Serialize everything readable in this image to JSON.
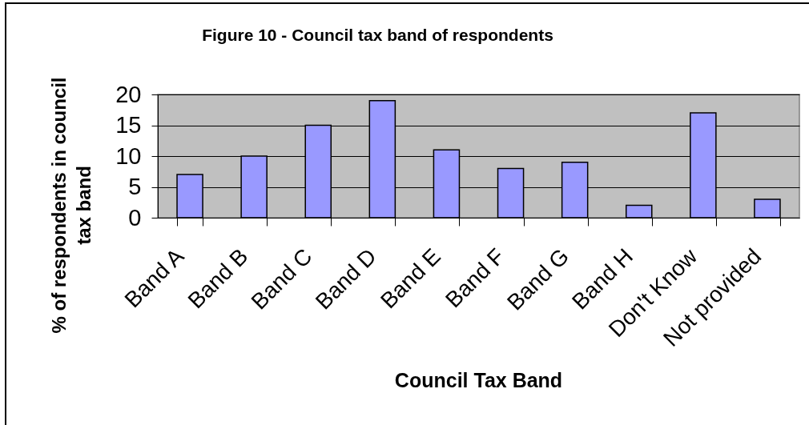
{
  "chart_data": {
    "type": "bar",
    "title": "Figure 10 - Council tax band of respondents",
    "xlabel": "Council Tax Band",
    "ylabel": "% of respondents in council tax band",
    "categories": [
      "Band A",
      "Band B",
      "Band C",
      "Band D",
      "Band E",
      "Band F",
      "Band G",
      "Band H",
      "Don't Know",
      "Not provided"
    ],
    "values": [
      7,
      10,
      15,
      19,
      11,
      8,
      9,
      2,
      17,
      3
    ],
    "color": "#9999ff",
    "ylim": [
      0,
      20
    ],
    "yticks": [
      0,
      5,
      10,
      15,
      20
    ],
    "grid": "y"
  }
}
